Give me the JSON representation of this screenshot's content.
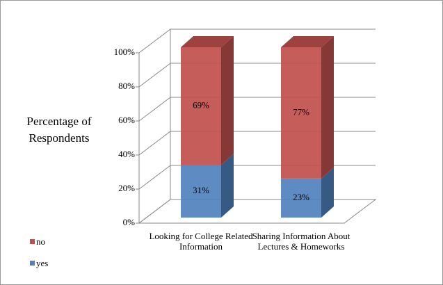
{
  "chart_data": {
    "type": "bar3d_stacked",
    "y_axis_label": "Percentage of Respondents",
    "categories": [
      "Looking for College Related Information",
      "Sharing Information About Lectures & Homeworks"
    ],
    "series": [
      {
        "name": "yes",
        "color": "#4f81bd",
        "values": [
          31,
          23
        ],
        "value_labels": [
          "31%",
          "23%"
        ]
      },
      {
        "name": "no",
        "color": "#c0504d",
        "values": [
          69,
          77
        ],
        "value_labels": [
          "69%",
          "77%"
        ]
      }
    ],
    "ylim": [
      0,
      100
    ],
    "yticks": [
      {
        "value": 0,
        "label": "0%"
      },
      {
        "value": 20,
        "label": "20%"
      },
      {
        "value": 40,
        "label": "40%"
      },
      {
        "value": 60,
        "label": "60%"
      },
      {
        "value": 80,
        "label": "80%"
      },
      {
        "value": 100,
        "label": "100%"
      }
    ],
    "grid": true,
    "legend": "bottom-left"
  }
}
